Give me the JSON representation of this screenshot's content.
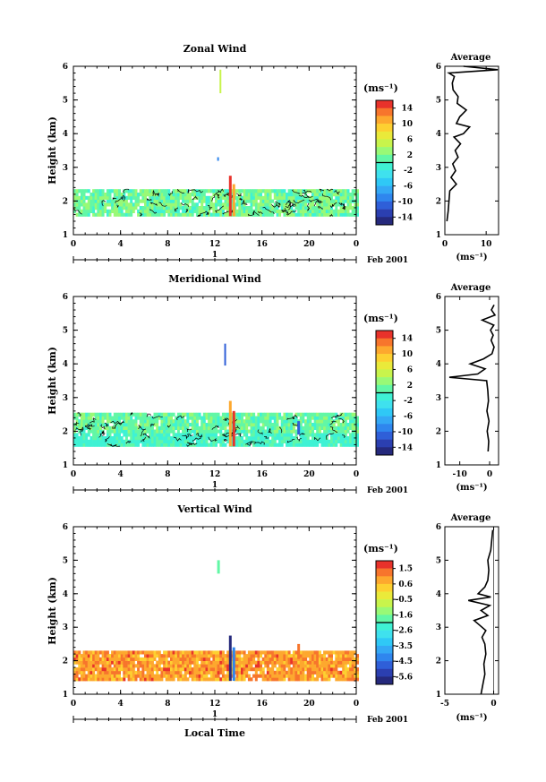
{
  "chart_data": [
    {
      "type": "heatmap",
      "title": "Zonal Wind",
      "ylabel": "Height (km)",
      "xlabel": "",
      "x_ticks": [
        "0",
        "4",
        "8",
        "12",
        "16",
        "20",
        "0"
      ],
      "y_ticks": [
        "1",
        "2",
        "3",
        "4",
        "5",
        "6"
      ],
      "xlim": [
        0,
        24
      ],
      "ylim": [
        1,
        6
      ],
      "date_marker": "1",
      "date_label": "Feb 2001",
      "colorbar": {
        "unit": "(ms⁻¹)",
        "ticks": [
          "14",
          "10",
          "6",
          "2",
          "-2",
          "-6",
          "-10",
          "-14"
        ],
        "range": [
          -16,
          16
        ]
      },
      "average": {
        "title": "Average",
        "xlabel": "(ms⁻¹)",
        "x_ticks": [
          "0",
          "10"
        ],
        "xlim": [
          0,
          13
        ],
        "zero_line": false,
        "profile": [
          [
            1.4,
            0.5
          ],
          [
            1.7,
            0.8
          ],
          [
            2.0,
            1.0
          ],
          [
            2.3,
            1.2
          ],
          [
            2.5,
            2.8
          ],
          [
            2.7,
            1.5
          ],
          [
            2.9,
            2.6
          ],
          [
            3.1,
            1.9
          ],
          [
            3.3,
            3.2
          ],
          [
            3.5,
            2.5
          ],
          [
            3.7,
            3.8
          ],
          [
            3.9,
            2.2
          ],
          [
            4.0,
            4.5
          ],
          [
            4.2,
            6.0
          ],
          [
            4.3,
            2.8
          ],
          [
            4.5,
            3.6
          ],
          [
            4.7,
            5.2
          ],
          [
            4.9,
            3.0
          ],
          [
            5.1,
            3.2
          ],
          [
            5.3,
            2.0
          ],
          [
            5.5,
            1.8
          ],
          [
            5.7,
            2.3
          ],
          [
            5.8,
            1.0
          ],
          [
            5.9,
            12.8
          ],
          [
            6.0,
            4.5
          ]
        ]
      }
    },
    {
      "type": "heatmap",
      "title": "Meridional Wind",
      "ylabel": "Height (km)",
      "xlabel": "",
      "x_ticks": [
        "0",
        "4",
        "8",
        "12",
        "16",
        "20",
        "0"
      ],
      "y_ticks": [
        "1",
        "2",
        "3",
        "4",
        "5",
        "6"
      ],
      "xlim": [
        0,
        24
      ],
      "ylim": [
        1,
        6
      ],
      "date_marker": "1",
      "date_label": "Feb 2001",
      "colorbar": {
        "unit": "(ms⁻¹)",
        "ticks": [
          "14",
          "10",
          "6",
          "2",
          "-2",
          "-6",
          "-10",
          "-14"
        ],
        "range": [
          -16,
          16
        ]
      },
      "average": {
        "title": "Average",
        "xlabel": "(ms⁻¹)",
        "x_ticks": [
          "-10",
          "0"
        ],
        "xlim": [
          -15,
          3
        ],
        "zero_line": false,
        "profile": [
          [
            1.4,
            -0.5
          ],
          [
            1.7,
            -0.3
          ],
          [
            2.0,
            -0.8
          ],
          [
            2.3,
            -0.2
          ],
          [
            2.6,
            -0.9
          ],
          [
            2.9,
            -0.4
          ],
          [
            3.2,
            -0.6
          ],
          [
            3.5,
            -1.0
          ],
          [
            3.6,
            -13.5
          ],
          [
            3.7,
            -4.0
          ],
          [
            3.85,
            -1.5
          ],
          [
            4.0,
            -6.5
          ],
          [
            4.15,
            -2.0
          ],
          [
            4.3,
            0.8
          ],
          [
            4.5,
            1.5
          ],
          [
            4.7,
            0.5
          ],
          [
            4.85,
            1.2
          ],
          [
            5.0,
            0.3
          ],
          [
            5.15,
            1.4
          ],
          [
            5.3,
            -2.5
          ],
          [
            5.45,
            1.8
          ],
          [
            5.6,
            0.6
          ],
          [
            5.75,
            1.5
          ]
        ]
      }
    },
    {
      "type": "heatmap",
      "title": "Vertical Wind",
      "ylabel": "Height (km)",
      "xlabel": "Local Time",
      "x_ticks": [
        "0",
        "4",
        "8",
        "12",
        "16",
        "20",
        "0"
      ],
      "y_ticks": [
        "1",
        "2",
        "3",
        "4",
        "5",
        "6"
      ],
      "xlim": [
        0,
        24
      ],
      "ylim": [
        1,
        6
      ],
      "date_marker": "1",
      "date_label": "Feb 2001",
      "colorbar": {
        "unit": "(ms⁻¹)",
        "ticks": [
          "1.5",
          "0.6",
          "-0.5",
          "-1.6",
          "-2.6",
          "-3.5",
          "-4.5",
          "-5.6"
        ],
        "range": [
          -6.2,
          2.0
        ]
      },
      "average": {
        "title": "Average",
        "xlabel": "(ms⁻¹)",
        "x_ticks": [
          "-5",
          "0"
        ],
        "xlim": [
          -5,
          0.5
        ],
        "zero_line": true,
        "profile": [
          [
            1.0,
            -1.3
          ],
          [
            1.3,
            -1.1
          ],
          [
            1.6,
            -0.9
          ],
          [
            1.9,
            -1.0
          ],
          [
            2.2,
            -0.8
          ],
          [
            2.5,
            -0.9
          ],
          [
            2.7,
            -1.2
          ],
          [
            2.9,
            -0.8
          ],
          [
            3.05,
            -1.4
          ],
          [
            3.2,
            -2.0
          ],
          [
            3.35,
            -0.6
          ],
          [
            3.5,
            -1.3
          ],
          [
            3.65,
            -0.4
          ],
          [
            3.8,
            -2.6
          ],
          [
            3.9,
            -0.3
          ],
          [
            4.0,
            -1.6
          ],
          [
            4.2,
            -0.9
          ],
          [
            4.4,
            -0.6
          ],
          [
            4.7,
            -0.5
          ],
          [
            5.0,
            -0.6
          ],
          [
            5.3,
            -0.3
          ],
          [
            5.6,
            -0.2
          ],
          [
            5.9,
            -0.1
          ]
        ]
      }
    }
  ]
}
